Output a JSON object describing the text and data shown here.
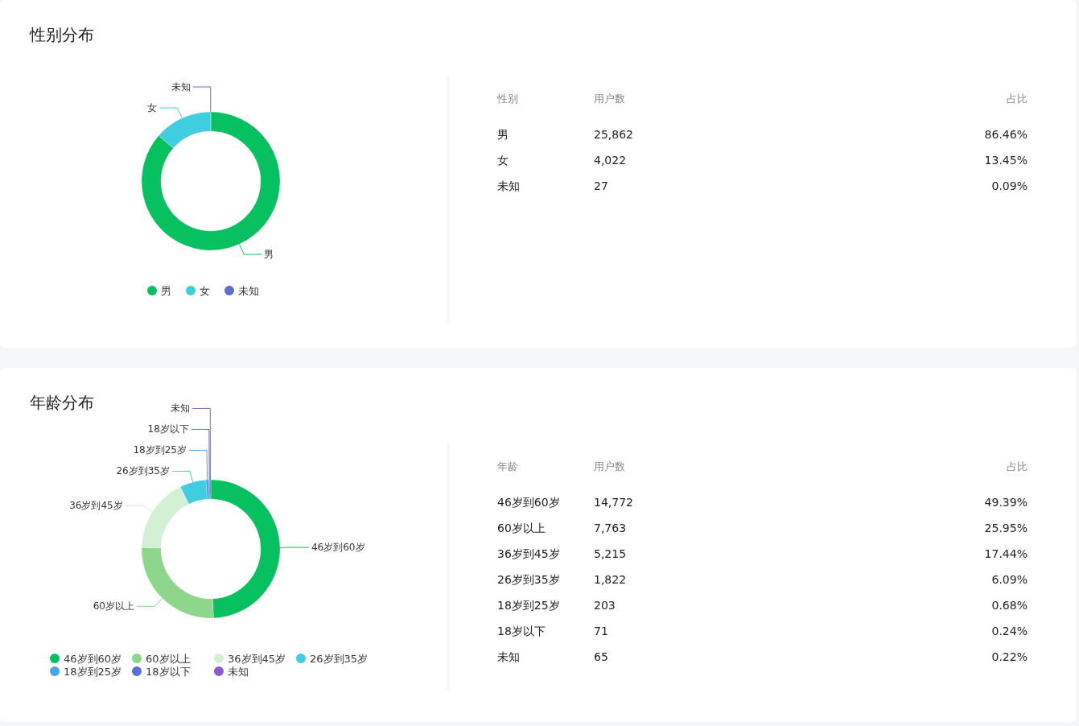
{
  "chart_data": [
    {
      "type": "donut",
      "title": "性别分布",
      "categories": [
        "男",
        "女",
        "未知"
      ],
      "values": [
        86.46,
        13.45,
        0.09
      ],
      "colors": [
        "#07c160",
        "#40cde0",
        "#5b6fce"
      ],
      "legend": "bottom",
      "annotations": [
        "性别",
        "用户数",
        "占比",
        "25,862",
        "86.46%",
        "4,022",
        "13.45%",
        "27",
        "0.09%"
      ]
    },
    {
      "type": "donut",
      "title": "年龄分布",
      "categories": [
        "46岁到60岁",
        "60岁以上",
        "36岁到45岁",
        "26岁到35岁",
        "18岁到25岁",
        "18岁以下",
        "未知"
      ],
      "values": [
        49.39,
        25.95,
        17.44,
        6.09,
        0.68,
        0.24,
        0.22
      ],
      "colors": [
        "#07c160",
        "#8ed68b",
        "#d2f0d3",
        "#40cde0",
        "#4ba3ec",
        "#5b6fce",
        "#8a5cc8"
      ],
      "legend": "bottom",
      "annotations": [
        "年龄",
        "用户数",
        "占比",
        "14,772",
        "49.39%",
        "7,763",
        "25.95%",
        "5,215",
        "17.44%",
        "1,822",
        "6.09%",
        "203",
        "0.68%",
        "71",
        "0.24%",
        "65",
        "0.22%"
      ]
    }
  ]
}
